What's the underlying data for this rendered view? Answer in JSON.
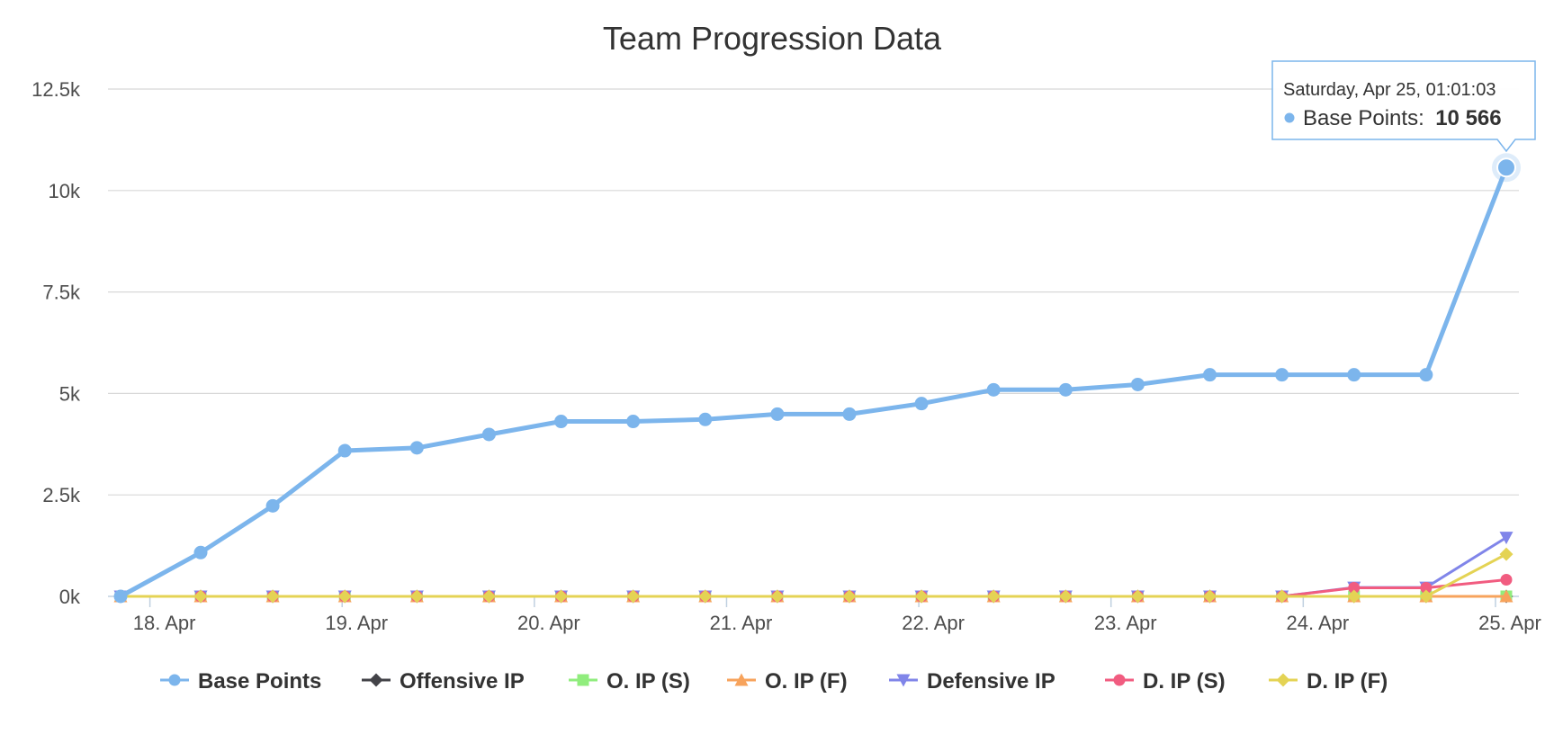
{
  "chart_data": {
    "type": "line",
    "title": "Team Progression Data",
    "xlabel": "",
    "ylabel": "",
    "ylim": [
      0,
      12500
    ],
    "y_ticks": [
      0,
      2500,
      5000,
      7500,
      10000,
      12500
    ],
    "y_tick_labels": [
      "0k",
      "2.5k",
      "5k",
      "7.5k",
      "10k",
      "12.5k"
    ],
    "x_range": [
      "2015-04-17T20:00",
      "2015-04-25T01:01"
    ],
    "x_ticks": [
      "2015-04-18T00:00",
      "2015-04-19T00:00",
      "2015-04-20T00:00",
      "2015-04-21T00:00",
      "2015-04-22T00:00",
      "2015-04-23T00:00",
      "2015-04-24T00:00",
      "2015-04-25T00:00"
    ],
    "x_tick_labels": [
      "18. Apr",
      "19. Apr",
      "20. Apr",
      "21. Apr",
      "22. Apr",
      "23. Apr",
      "24. Apr",
      "25. Apr"
    ],
    "x": [
      "2015-04-17T20:00",
      "2015-04-18T06:00",
      "2015-04-18T15:00",
      "2015-04-18T24:00",
      "2015-04-19T09:00",
      "2015-04-19T18:00",
      "2015-04-20T03:00",
      "2015-04-20T12:00",
      "2015-04-20T21:00",
      "2015-04-21T06:00",
      "2015-04-21T15:00",
      "2015-04-22T00:00",
      "2015-04-22T09:00",
      "2015-04-22T18:00",
      "2015-04-23T03:00",
      "2015-04-23T12:00",
      "2015-04-23T21:00",
      "2015-04-24T06:00",
      "2015-04-24T15:00",
      "2015-04-25T01:01"
    ],
    "grid": true,
    "legend_position": "bottom",
    "series": [
      {
        "name": "Base Points",
        "color": "#7cb5ec",
        "marker": "circle",
        "values": [
          0,
          1080,
          2230,
          3590,
          3660,
          3990,
          4310,
          4310,
          4360,
          4490,
          4490,
          4750,
          5090,
          5090,
          5220,
          5460,
          5460,
          5460,
          5460,
          10566
        ]
      },
      {
        "name": "Offensive IP",
        "color": "#434348",
        "marker": "diamond",
        "values": [
          0,
          0,
          0,
          0,
          0,
          0,
          0,
          0,
          0,
          0,
          0,
          0,
          0,
          0,
          0,
          0,
          0,
          0,
          0,
          0
        ]
      },
      {
        "name": "O. IP (S)",
        "color": "#90ed7d",
        "marker": "square",
        "values": [
          0,
          0,
          0,
          0,
          0,
          0,
          0,
          0,
          0,
          0,
          0,
          0,
          0,
          0,
          0,
          0,
          0,
          0,
          0,
          0
        ]
      },
      {
        "name": "O. IP (F)",
        "color": "#f7a35c",
        "marker": "triangle",
        "values": [
          0,
          0,
          0,
          0,
          0,
          0,
          0,
          0,
          0,
          0,
          0,
          0,
          0,
          0,
          0,
          0,
          0,
          0,
          0,
          0
        ]
      },
      {
        "name": "Defensive IP",
        "color": "#8085e9",
        "marker": "triangle-down",
        "values": [
          0,
          0,
          0,
          0,
          0,
          0,
          0,
          0,
          0,
          0,
          0,
          0,
          0,
          0,
          0,
          0,
          0,
          220,
          220,
          1450
        ]
      },
      {
        "name": "D. IP (S)",
        "color": "#f15c80",
        "marker": "circle",
        "values": [
          0,
          0,
          0,
          0,
          0,
          0,
          0,
          0,
          0,
          0,
          0,
          0,
          0,
          0,
          0,
          0,
          0,
          210,
          210,
          410
        ]
      },
      {
        "name": "D. IP (F)",
        "color": "#e4d354",
        "marker": "diamond",
        "values": [
          0,
          0,
          0,
          0,
          0,
          0,
          0,
          0,
          0,
          0,
          0,
          0,
          0,
          0,
          0,
          0,
          0,
          0,
          0,
          1040
        ]
      }
    ],
    "tooltip": {
      "date": "Saturday, Apr 25, 01:01:03",
      "series": "Base Points",
      "series_label": "Base Points:",
      "value": "10 566",
      "point_index": 19
    }
  }
}
